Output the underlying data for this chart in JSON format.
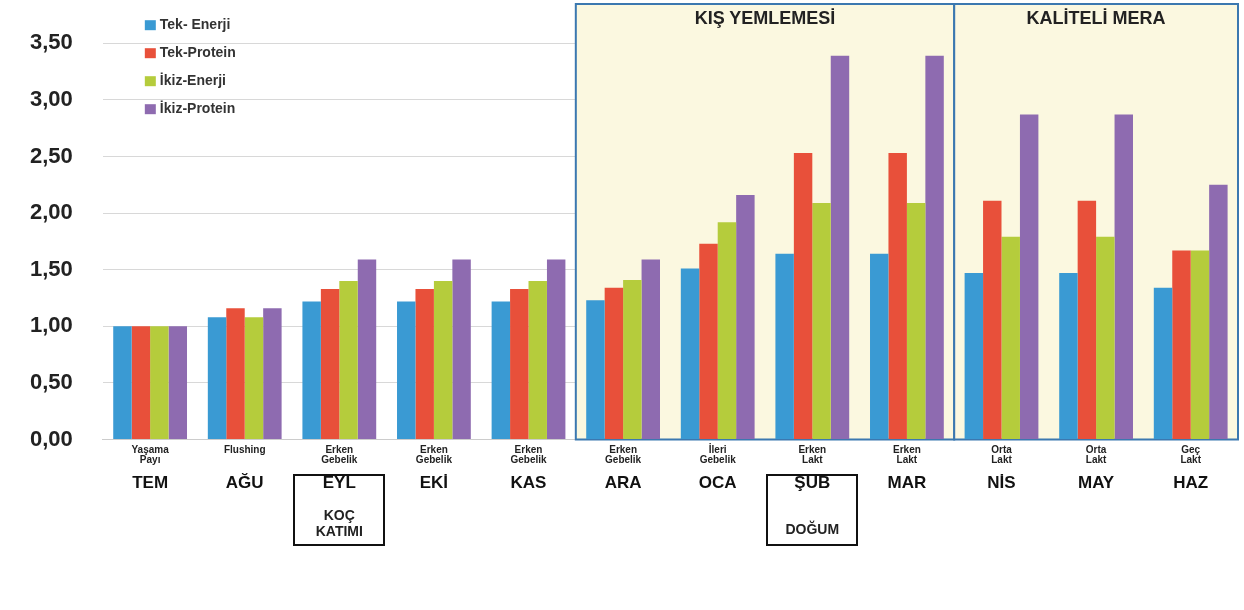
{
  "chart_data": {
    "type": "bar",
    "categories": [
      "TEM",
      "AĞU",
      "EYL",
      "EKİ",
      "KAS",
      "ARA",
      "OCA",
      "ŞUB",
      "MAR",
      "NİS",
      "MAY",
      "HAZ"
    ],
    "series": [
      {
        "name": "Tek- Enerji",
        "color": "#3a9ad3",
        "values": [
          1.0,
          1.08,
          1.22,
          1.22,
          1.22,
          1.23,
          1.51,
          1.64,
          1.64,
          1.47,
          1.47,
          1.34
        ]
      },
      {
        "name": "Tek-Protein",
        "color": "#e8503a",
        "values": [
          1.0,
          1.16,
          1.33,
          1.33,
          1.33,
          1.34,
          1.73,
          2.53,
          2.53,
          2.11,
          2.11,
          1.67
        ]
      },
      {
        "name": "İkiz-Enerji",
        "color": "#b5cc3c",
        "values": [
          1.0,
          1.08,
          1.4,
          1.4,
          1.4,
          1.41,
          1.92,
          2.09,
          2.09,
          1.79,
          1.79,
          1.67
        ]
      },
      {
        "name": "İkiz-Protein",
        "color": "#8e6bb0",
        "values": [
          1.0,
          1.16,
          1.59,
          1.59,
          1.59,
          1.59,
          2.16,
          3.39,
          3.39,
          2.87,
          2.87,
          2.25
        ]
      }
    ],
    "ylim": [
      0,
      3.5
    ],
    "yticks": [
      {
        "value": 0,
        "label": "0,00"
      },
      {
        "value": 0.5,
        "label": "0,50"
      },
      {
        "value": 1,
        "label": "1,00"
      },
      {
        "value": 1.5,
        "label": "1,50"
      },
      {
        "value": 2,
        "label": "2,00"
      },
      {
        "value": 2.5,
        "label": "2,50"
      },
      {
        "value": 3,
        "label": "3,00"
      },
      {
        "value": 3.5,
        "label": "3,50"
      }
    ],
    "grid": "y",
    "legend": "top left",
    "bands": [
      {
        "axis": "x",
        "from": "ARA",
        "to": "MAR",
        "label": "KIŞ YEMLEMESİ",
        "color": "#fbf8e0"
      },
      {
        "axis": "x",
        "from": "NİS",
        "to": "HAZ",
        "label": "KALİTELİ MERA",
        "color": "#fbf8e0"
      }
    ],
    "annotations": [
      "Yaşama Payı",
      "Flushing",
      "Erken Gebelik",
      "Erken Gebelik",
      "Erken Gebelik",
      "Erken Gebelik",
      "İleri Gebelik",
      "Erken Lakt",
      "Erken Lakt",
      "Orta Lakt",
      "Orta Lakt",
      "Geç Lakt",
      "KOÇ KATIMI",
      "DOĞUM"
    ]
  }
}
